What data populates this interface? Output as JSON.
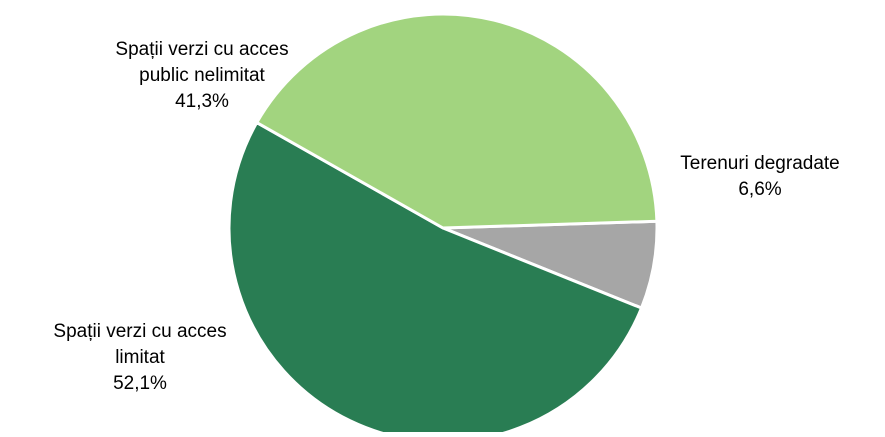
{
  "chart_data": {
    "type": "pie",
    "slices": [
      {
        "label_lines": [
          "Terenuri degradate"
        ],
        "value": 6.6,
        "value_label": "6,6%",
        "color": "#a6a6a6"
      },
      {
        "label_lines": [
          "Spații verzi cu acces",
          "limitat"
        ],
        "value": 52.1,
        "value_label": "52,1%",
        "color": "#297d53"
      },
      {
        "label_lines": [
          "Spații verzi cu acces",
          "public nelimitat"
        ],
        "value": 41.3,
        "value_label": "41,3%",
        "color": "#a2d47f"
      }
    ]
  }
}
